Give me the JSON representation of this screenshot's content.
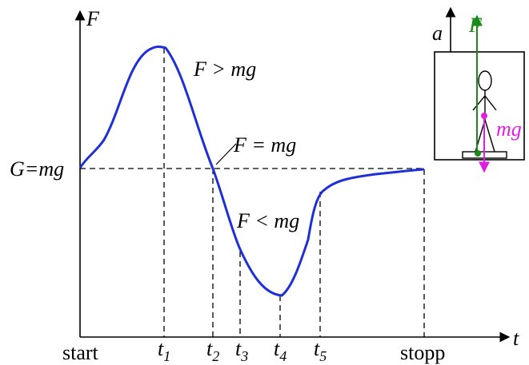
{
  "axes": {
    "y_label": "F",
    "x_label": "t",
    "level_label": "G=mg"
  },
  "annotations": {
    "above": "F > mg",
    "equal": "F = mg",
    "below": "F < mg"
  },
  "time_labels": {
    "start": "start",
    "stop": "stopp",
    "marks": [
      {
        "base": "t",
        "sub": "1"
      },
      {
        "base": "t",
        "sub": "2"
      },
      {
        "base": "t",
        "sub": "3"
      },
      {
        "base": "t",
        "sub": "4"
      },
      {
        "base": "t",
        "sub": "5"
      }
    ]
  },
  "inset": {
    "acceleration": "a",
    "force": "F",
    "weight": "mg"
  }
}
